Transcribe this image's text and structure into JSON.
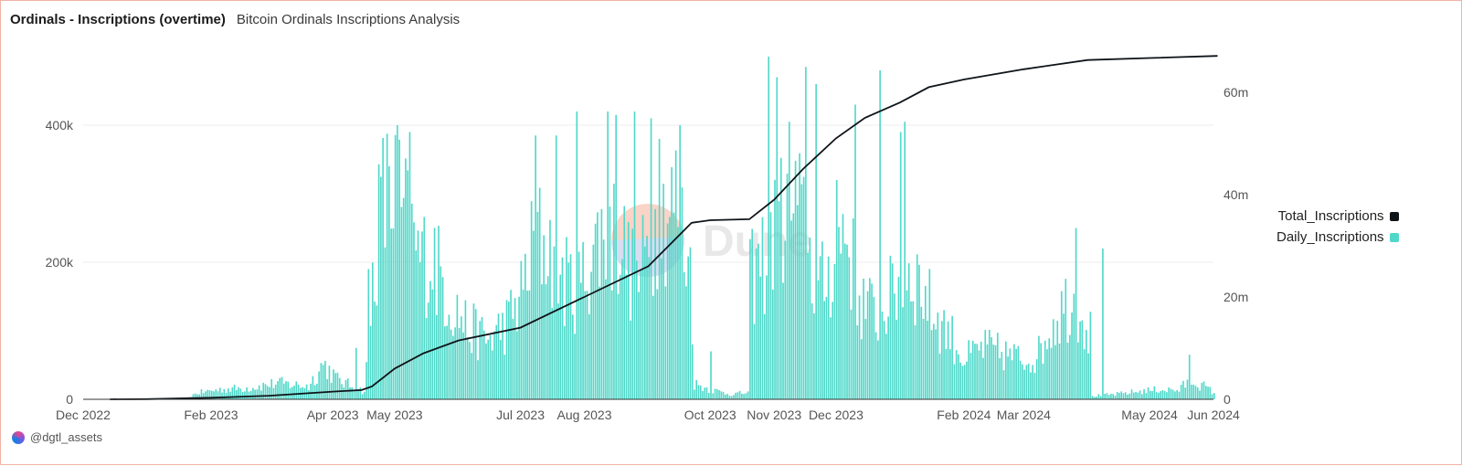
{
  "header": {
    "title": "Ordinals - Inscriptions (overtime)",
    "subtitle": "Bitcoin Ordinals Inscriptions Analysis"
  },
  "watermark": {
    "text": "Dune"
  },
  "footer": {
    "handle": "@dgtl_assets"
  },
  "colors": {
    "daily": "#4fd8c9",
    "total": "#0f1419",
    "watermark_orange": "#f4b199",
    "watermark_blue": "#b9c2e6"
  },
  "legend": [
    {
      "label": "Total_Inscriptions",
      "color": "#0f1419"
    },
    {
      "label": "Daily_Inscriptions",
      "color": "#4fd8c9"
    }
  ],
  "chart_data": {
    "type": "bar",
    "x_tick_labels": [
      "Dec 2022",
      "Feb 2023",
      "Apr 2023",
      "May 2023",
      "Jul 2023",
      "Aug 2023",
      "Oct 2023",
      "Nov 2023",
      "Dec 2023",
      "Feb 2024",
      "Mar 2024",
      "May 2024",
      "Jun 2024"
    ],
    "x_tick_dates": [
      "2022-12-01",
      "2023-02-01",
      "2023-04-01",
      "2023-05-01",
      "2023-07-01",
      "2023-08-01",
      "2023-10-01",
      "2023-11-01",
      "2023-12-01",
      "2024-02-01",
      "2024-03-01",
      "2024-05-01",
      "2024-06-01"
    ],
    "y_left": {
      "ticks": [
        0,
        200000,
        400000
      ],
      "tick_labels": [
        "0",
        "200k",
        "400k"
      ],
      "lim": [
        0,
        500000
      ]
    },
    "y_right": {
      "ticks": [
        0,
        20000000,
        40000000,
        60000000
      ],
      "tick_labels": [
        "0",
        "20m",
        "40m",
        "60m"
      ],
      "lim": [
        0,
        67000000
      ]
    },
    "grid": true,
    "legend_position": "right",
    "series": [
      {
        "name": "Daily_Inscriptions",
        "type": "bar",
        "axis": "left",
        "anchors": [
          [
            "2022-12-14",
            0
          ],
          [
            "2023-01-20",
            2000
          ],
          [
            "2023-01-25",
            10000
          ],
          [
            "2023-02-05",
            15000
          ],
          [
            "2023-02-20",
            18000
          ],
          [
            "2023-03-05",
            25000
          ],
          [
            "2023-03-20",
            20000
          ],
          [
            "2023-03-27",
            55000
          ],
          [
            "2023-04-03",
            30000
          ],
          [
            "2023-04-10",
            20000
          ],
          [
            "2023-04-16",
            12000
          ],
          [
            "2023-04-18",
            80000
          ],
          [
            "2023-04-20",
            180000
          ],
          [
            "2023-04-24",
            300000
          ],
          [
            "2023-05-01",
            320000
          ],
          [
            "2023-05-05",
            280000
          ],
          [
            "2023-05-12",
            220000
          ],
          [
            "2023-05-20",
            210000
          ],
          [
            "2023-05-28",
            150000
          ],
          [
            "2023-06-05",
            110000
          ],
          [
            "2023-06-15",
            90000
          ],
          [
            "2023-06-25",
            120000
          ],
          [
            "2023-07-01",
            160000
          ],
          [
            "2023-07-08",
            250000
          ],
          [
            "2023-07-15",
            230000
          ],
          [
            "2023-07-22",
            180000
          ],
          [
            "2023-07-29",
            170000
          ],
          [
            "2023-08-05",
            230000
          ],
          [
            "2023-08-12",
            260000
          ],
          [
            "2023-08-19",
            240000
          ],
          [
            "2023-08-26",
            170000
          ],
          [
            "2023-09-02",
            250000
          ],
          [
            "2023-09-09",
            290000
          ],
          [
            "2023-09-14",
            300000
          ],
          [
            "2023-09-21",
            200000
          ],
          [
            "2023-09-22",
            25000
          ],
          [
            "2023-10-01",
            15000
          ],
          [
            "2023-10-10",
            8000
          ],
          [
            "2023-10-19",
            10000
          ],
          [
            "2023-10-20",
            180000
          ],
          [
            "2023-10-28",
            220000
          ],
          [
            "2023-11-05",
            280000
          ],
          [
            "2023-11-10",
            300000
          ],
          [
            "2023-11-15",
            260000
          ],
          [
            "2023-11-22",
            160000
          ],
          [
            "2023-11-28",
            200000
          ],
          [
            "2023-12-05",
            270000
          ],
          [
            "2023-12-12",
            150000
          ],
          [
            "2023-12-20",
            130000
          ],
          [
            "2023-12-28",
            160000
          ],
          [
            "2024-01-04",
            200000
          ],
          [
            "2024-01-10",
            180000
          ],
          [
            "2024-01-17",
            130000
          ],
          [
            "2024-01-25",
            100000
          ],
          [
            "2024-02-01",
            60000
          ],
          [
            "2024-02-10",
            80000
          ],
          [
            "2024-02-20",
            70000
          ],
          [
            "2024-03-01",
            60000
          ],
          [
            "2024-03-08",
            70000
          ],
          [
            "2024-03-15",
            120000
          ],
          [
            "2024-03-22",
            150000
          ],
          [
            "2024-03-28",
            140000
          ],
          [
            "2024-04-02",
            100000
          ],
          [
            "2024-04-03",
            5000
          ],
          [
            "2024-04-15",
            8000
          ],
          [
            "2024-04-25",
            12000
          ],
          [
            "2024-05-05",
            15000
          ],
          [
            "2024-05-15",
            14000
          ],
          [
            "2024-05-20",
            30000
          ],
          [
            "2024-05-27",
            20000
          ],
          [
            "2024-06-01",
            10000
          ]
        ],
        "spikes": [
          [
            "2023-04-12",
            75000
          ],
          [
            "2023-04-18",
            190000
          ],
          [
            "2023-04-28",
            340000
          ],
          [
            "2023-05-02",
            400000
          ],
          [
            "2023-05-08",
            390000
          ],
          [
            "2023-05-20",
            250000
          ],
          [
            "2023-07-08",
            385000
          ],
          [
            "2023-07-18",
            385000
          ],
          [
            "2023-07-28",
            420000
          ],
          [
            "2023-08-12",
            420000
          ],
          [
            "2023-08-16",
            415000
          ],
          [
            "2023-08-25",
            420000
          ],
          [
            "2023-09-02",
            410000
          ],
          [
            "2023-09-06",
            380000
          ],
          [
            "2023-09-16",
            400000
          ],
          [
            "2023-09-22",
            80000
          ],
          [
            "2023-10-01",
            70000
          ],
          [
            "2023-10-29",
            500000
          ],
          [
            "2023-11-02",
            470000
          ],
          [
            "2023-11-08",
            405000
          ],
          [
            "2023-11-16",
            485000
          ],
          [
            "2023-11-21",
            460000
          ],
          [
            "2023-12-01",
            320000
          ],
          [
            "2023-12-10",
            430000
          ],
          [
            "2023-12-22",
            480000
          ],
          [
            "2024-01-01",
            390000
          ],
          [
            "2024-01-03",
            405000
          ],
          [
            "2024-03-26",
            250000
          ],
          [
            "2024-04-08",
            220000
          ],
          [
            "2024-05-20",
            65000
          ]
        ]
      },
      {
        "name": "Total_Inscriptions",
        "type": "line",
        "axis": "right",
        "values": [
          [
            "2022-12-14",
            0
          ],
          [
            "2023-01-01",
            30000
          ],
          [
            "2023-02-01",
            300000
          ],
          [
            "2023-03-01",
            700000
          ],
          [
            "2023-04-01",
            1500000
          ],
          [
            "2023-04-15",
            1800000
          ],
          [
            "2023-04-20",
            2500000
          ],
          [
            "2023-05-01",
            6000000
          ],
          [
            "2023-05-15",
            9000000
          ],
          [
            "2023-06-01",
            11500000
          ],
          [
            "2023-07-01",
            14000000
          ],
          [
            "2023-08-01",
            20000000
          ],
          [
            "2023-09-01",
            26000000
          ],
          [
            "2023-09-22",
            34500000
          ],
          [
            "2023-10-01",
            35000000
          ],
          [
            "2023-10-20",
            35200000
          ],
          [
            "2023-11-01",
            39000000
          ],
          [
            "2023-11-15",
            45000000
          ],
          [
            "2023-12-01",
            51000000
          ],
          [
            "2023-12-15",
            55000000
          ],
          [
            "2024-01-01",
            58000000
          ],
          [
            "2024-01-15",
            61000000
          ],
          [
            "2024-02-01",
            62500000
          ],
          [
            "2024-03-01",
            64500000
          ],
          [
            "2024-04-01",
            66300000
          ],
          [
            "2024-05-01",
            66700000
          ],
          [
            "2024-06-03",
            67100000
          ]
        ]
      }
    ]
  }
}
